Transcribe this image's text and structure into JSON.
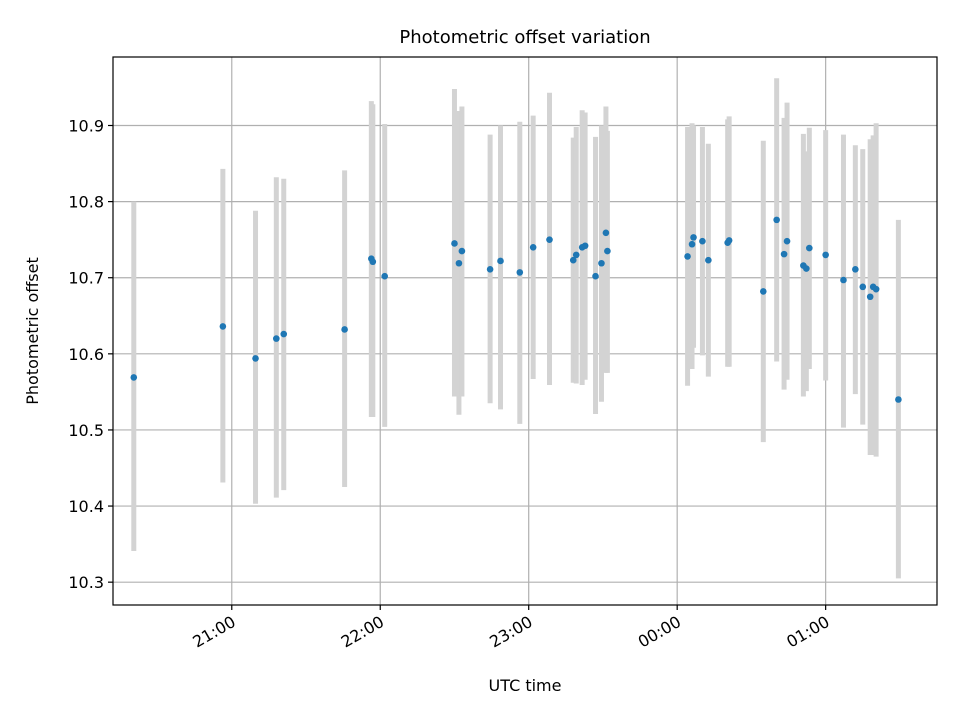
{
  "chart_data": {
    "type": "scatter",
    "title": "Photometric offset variation",
    "xlabel": "UTC time",
    "ylabel": "Photometric offset",
    "x_unit": "hours",
    "xlim": [
      -3.8,
      1.75
    ],
    "ylim": [
      10.27,
      10.99
    ],
    "grid": true,
    "x_ticks": [
      {
        "value": -3.0,
        "label": "21:00"
      },
      {
        "value": -2.0,
        "label": "22:00"
      },
      {
        "value": -1.0,
        "label": "23:00"
      },
      {
        "value": 0.0,
        "label": "00:00"
      },
      {
        "value": 1.0,
        "label": "01:00"
      }
    ],
    "y_ticks": [
      {
        "value": 10.3,
        "label": "10.3"
      },
      {
        "value": 10.4,
        "label": "10.4"
      },
      {
        "value": 10.5,
        "label": "10.5"
      },
      {
        "value": 10.6,
        "label": "10.6"
      },
      {
        "value": 10.7,
        "label": "10.7"
      },
      {
        "value": 10.8,
        "label": "10.8"
      },
      {
        "value": 10.9,
        "label": "10.9"
      }
    ],
    "colors": {
      "point": "#1f77b4",
      "errorbar": "#d3d3d3",
      "grid": "#b0b0b0"
    },
    "points": [
      {
        "x": -3.66,
        "y": 10.569,
        "lo": 10.341,
        "hi": 10.8
      },
      {
        "x": -3.06,
        "y": 10.636,
        "lo": 10.431,
        "hi": 10.843
      },
      {
        "x": -2.84,
        "y": 10.594,
        "lo": 10.403,
        "hi": 10.788
      },
      {
        "x": -2.7,
        "y": 10.62,
        "lo": 10.411,
        "hi": 10.832
      },
      {
        "x": -2.65,
        "y": 10.626,
        "lo": 10.421,
        "hi": 10.83
      },
      {
        "x": -2.24,
        "y": 10.632,
        "lo": 10.425,
        "hi": 10.841
      },
      {
        "x": -2.06,
        "y": 10.725,
        "lo": 10.517,
        "hi": 10.932
      },
      {
        "x": -2.05,
        "y": 10.721,
        "lo": 10.517,
        "hi": 10.928
      },
      {
        "x": -1.97,
        "y": 10.702,
        "lo": 10.504,
        "hi": 10.902
      },
      {
        "x": -1.5,
        "y": 10.745,
        "lo": 10.544,
        "hi": 10.948
      },
      {
        "x": -1.47,
        "y": 10.719,
        "lo": 10.52,
        "hi": 10.919
      },
      {
        "x": -1.45,
        "y": 10.735,
        "lo": 10.544,
        "hi": 10.925
      },
      {
        "x": -1.26,
        "y": 10.711,
        "lo": 10.535,
        "hi": 10.888
      },
      {
        "x": -1.19,
        "y": 10.722,
        "lo": 10.527,
        "hi": 10.9
      },
      {
        "x": -1.06,
        "y": 10.707,
        "lo": 10.508,
        "hi": 10.905
      },
      {
        "x": -0.97,
        "y": 10.74,
        "lo": 10.567,
        "hi": 10.913
      },
      {
        "x": -0.86,
        "y": 10.75,
        "lo": 10.559,
        "hi": 10.943
      },
      {
        "x": -0.7,
        "y": 10.723,
        "lo": 10.562,
        "hi": 10.884
      },
      {
        "x": -0.68,
        "y": 10.73,
        "lo": 10.561,
        "hi": 10.898
      },
      {
        "x": -0.64,
        "y": 10.74,
        "lo": 10.559,
        "hi": 10.92
      },
      {
        "x": -0.62,
        "y": 10.742,
        "lo": 10.566,
        "hi": 10.917
      },
      {
        "x": -0.55,
        "y": 10.702,
        "lo": 10.521,
        "hi": 10.885
      },
      {
        "x": -0.51,
        "y": 10.719,
        "lo": 10.537,
        "hi": 10.9
      },
      {
        "x": -0.48,
        "y": 10.759,
        "lo": 10.575,
        "hi": 10.925
      },
      {
        "x": -0.47,
        "y": 10.735,
        "lo": 10.575,
        "hi": 10.893
      },
      {
        "x": 0.07,
        "y": 10.728,
        "lo": 10.558,
        "hi": 10.898
      },
      {
        "x": 0.1,
        "y": 10.744,
        "lo": 10.58,
        "hi": 10.903
      },
      {
        "x": 0.11,
        "y": 10.753,
        "lo": 10.608,
        "hi": 10.9
      },
      {
        "x": 0.17,
        "y": 10.748,
        "lo": 10.598,
        "hi": 10.898
      },
      {
        "x": 0.21,
        "y": 10.723,
        "lo": 10.57,
        "hi": 10.876
      },
      {
        "x": 0.34,
        "y": 10.746,
        "lo": 10.583,
        "hi": 10.908
      },
      {
        "x": 0.35,
        "y": 10.749,
        "lo": 10.583,
        "hi": 10.912
      },
      {
        "x": 0.58,
        "y": 10.682,
        "lo": 10.484,
        "hi": 10.88
      },
      {
        "x": 0.67,
        "y": 10.776,
        "lo": 10.59,
        "hi": 10.962
      },
      {
        "x": 0.72,
        "y": 10.731,
        "lo": 10.553,
        "hi": 10.91
      },
      {
        "x": 0.74,
        "y": 10.748,
        "lo": 10.566,
        "hi": 10.93
      },
      {
        "x": 0.85,
        "y": 10.716,
        "lo": 10.544,
        "hi": 10.889
      },
      {
        "x": 0.87,
        "y": 10.712,
        "lo": 10.551,
        "hi": 10.866
      },
      {
        "x": 0.89,
        "y": 10.739,
        "lo": 10.58,
        "hi": 10.897
      },
      {
        "x": 1.0,
        "y": 10.73,
        "lo": 10.565,
        "hi": 10.894
      },
      {
        "x": 1.12,
        "y": 10.697,
        "lo": 10.503,
        "hi": 10.888
      },
      {
        "x": 1.2,
        "y": 10.711,
        "lo": 10.547,
        "hi": 10.874
      },
      {
        "x": 1.25,
        "y": 10.688,
        "lo": 10.507,
        "hi": 10.869
      },
      {
        "x": 1.3,
        "y": 10.675,
        "lo": 10.467,
        "hi": 10.882
      },
      {
        "x": 1.32,
        "y": 10.688,
        "lo": 10.467,
        "hi": 10.887
      },
      {
        "x": 1.34,
        "y": 10.685,
        "lo": 10.465,
        "hi": 10.903
      },
      {
        "x": 1.49,
        "y": 10.54,
        "lo": 10.305,
        "hi": 10.776
      }
    ]
  }
}
